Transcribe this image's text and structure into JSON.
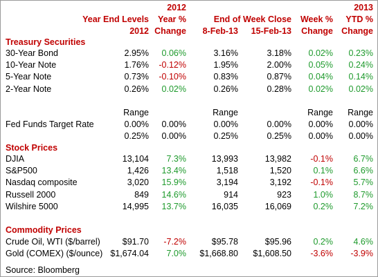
{
  "colors": {
    "header_red": "#c00000",
    "negative_red": "#c00000",
    "positive_green": "#1e9a2c",
    "section_red": "#c00000"
  },
  "header": {
    "line1": [
      "",
      "",
      "2012",
      "",
      "",
      "",
      "2013"
    ],
    "line2": [
      "Year End Levels",
      "Year %",
      "End of Week Close",
      "Week %",
      "YTD %"
    ],
    "line3": [
      "2012",
      "Change",
      "8-Feb-13",
      "15-Feb-13",
      "Change",
      "Change"
    ]
  },
  "sections": {
    "treasury": "Treasury Securities",
    "stocks": "Stock Prices",
    "commodities": "Commodity Prices"
  },
  "rows": [
    {
      "label": "30-Year Bond",
      "ye": "2.95%",
      "yc": "0.06%",
      "yc_color": "grn",
      "w1": "3.16%",
      "w2": "3.18%",
      "wc": "0.02%",
      "wc_color": "grn",
      "ytd": "0.23%",
      "ytd_color": "grn"
    },
    {
      "label": "10-Year Note",
      "ye": "1.76%",
      "yc": "-0.12%",
      "yc_color": "red",
      "w1": "1.95%",
      "w2": "2.00%",
      "wc": "0.05%",
      "wc_color": "grn",
      "ytd": "0.24%",
      "ytd_color": "grn"
    },
    {
      "label": "5-Year Note",
      "ye": "0.73%",
      "yc": "-0.10%",
      "yc_color": "red",
      "w1": "0.83%",
      "w2": "0.87%",
      "wc": "0.04%",
      "wc_color": "grn",
      "ytd": "0.14%",
      "ytd_color": "grn"
    },
    {
      "label": "2-Year Note",
      "ye": "0.26%",
      "yc": "0.02%",
      "yc_color": "grn",
      "w1": "0.26%",
      "w2": "0.28%",
      "wc": "0.02%",
      "wc_color": "grn",
      "ytd": "0.02%",
      "ytd_color": "grn"
    }
  ],
  "fed": {
    "range_label": "Range",
    "label": "Fed Funds Target Rate",
    "row1": [
      "0.00%",
      "0.00%",
      "0.00%",
      "0.00%",
      "0.00%",
      "0.00%"
    ],
    "row2": [
      "0.25%",
      "0.00%",
      "0.25%",
      "0.25%",
      "0.00%",
      "0.00%"
    ]
  },
  "stocks": [
    {
      "label": "DJIA",
      "ye": "13,104",
      "yc": "7.3%",
      "yc_color": "grn",
      "w1": "13,993",
      "w2": "13,982",
      "wc": "-0.1%",
      "wc_color": "red",
      "ytd": "6.7%",
      "ytd_color": "grn"
    },
    {
      "label": "S&P500",
      "ye": "1,426",
      "yc": "13.4%",
      "yc_color": "grn",
      "w1": "1,518",
      "w2": "1,520",
      "wc": "0.1%",
      "wc_color": "grn",
      "ytd": "6.6%",
      "ytd_color": "grn"
    },
    {
      "label": "Nasdaq composite",
      "ye": "3,020",
      "yc": "15.9%",
      "yc_color": "grn",
      "w1": "3,194",
      "w2": "3,192",
      "wc": "-0.1%",
      "wc_color": "red",
      "ytd": "5.7%",
      "ytd_color": "grn"
    },
    {
      "label": "Russell 2000",
      "ye": "849",
      "yc": "14.6%",
      "yc_color": "grn",
      "w1": "914",
      "w2": "923",
      "wc": "1.0%",
      "wc_color": "grn",
      "ytd": "8.7%",
      "ytd_color": "grn"
    },
    {
      "label": "Wilshire 5000",
      "ye": "14,995",
      "yc": "13.7%",
      "yc_color": "grn",
      "w1": "16,035",
      "w2": "16,069",
      "wc": "0.2%",
      "wc_color": "grn",
      "ytd": "7.2%",
      "ytd_color": "grn"
    }
  ],
  "commodities": [
    {
      "label": "Crude Oil, WTI ($/barrel)",
      "ye": "$91.70",
      "yc": "-7.2%",
      "yc_color": "red",
      "w1": "$95.78",
      "w2": "$95.96",
      "wc": "0.2%",
      "wc_color": "grn",
      "ytd": "4.6%",
      "ytd_color": "grn"
    },
    {
      "label": "Gold (COMEX) ($/ounce)",
      "ye": "$1,674.04",
      "yc": "7.0%",
      "yc_color": "grn",
      "w1": "$1,668.80",
      "w2": "$1,608.50",
      "wc": "-3.6%",
      "wc_color": "red",
      "ytd": "-3.9%",
      "ytd_color": "red"
    }
  ],
  "source": "Source: Bloomberg"
}
